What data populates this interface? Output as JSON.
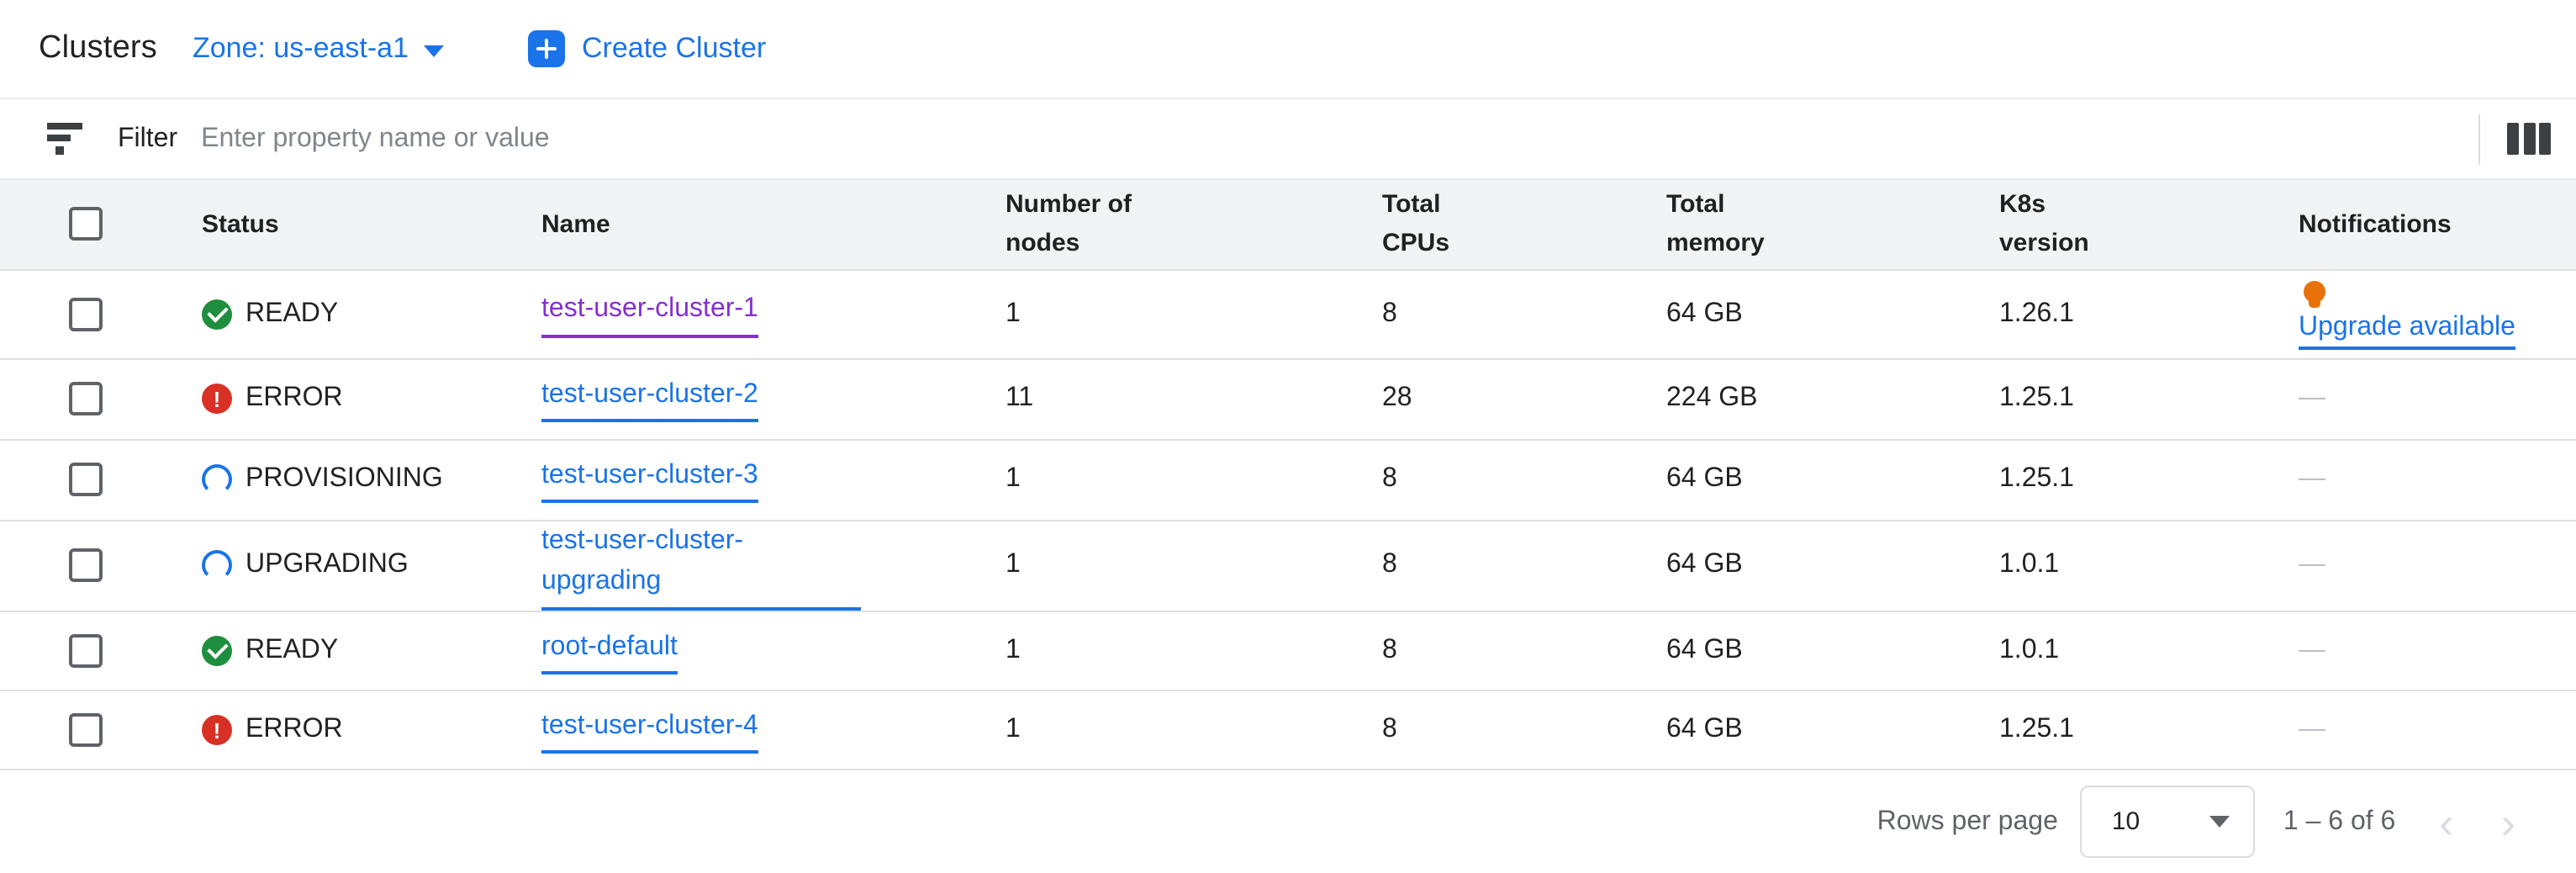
{
  "topbar": {
    "title": "Clusters",
    "zone": {
      "label": "Zone: us-east-a1",
      "icon": "caret-down-icon"
    },
    "create": {
      "label": "Create Cluster",
      "icon": "plus-icon"
    }
  },
  "filterbar": {
    "icon": "filter-icon",
    "label": "Filter",
    "placeholder": "Enter property name or value",
    "columns_icon": "columns-icon"
  },
  "table": {
    "headers": {
      "status": "Status",
      "name": "Name",
      "nodes": "Number of nodes",
      "cpus": "Total CPUs",
      "memory": "Total memory",
      "k8s": "K8s version",
      "notifications": "Notifications"
    },
    "rows": [
      {
        "status": "READY",
        "status_icon": "check-circle",
        "name": "test-user-cluster-1",
        "name_variant": "visited",
        "nodes": "1",
        "cpus": "8",
        "memory": "64 GB",
        "k8s": "1.26.1",
        "notification": {
          "icon": "bulb-icon",
          "label": "Upgrade available"
        }
      },
      {
        "status": "ERROR",
        "status_icon": "error-circle",
        "name": "test-user-cluster-2",
        "nodes": "11",
        "cpus": "28",
        "memory": "224 GB",
        "k8s": "1.25.1",
        "notification": {
          "label": "—"
        }
      },
      {
        "status": "PROVISIONING",
        "status_icon": "spinner",
        "name": "test-user-cluster-3",
        "nodes": "1",
        "cpus": "8",
        "memory": "64 GB",
        "k8s": "1.25.1",
        "notification": {
          "label": "—"
        }
      },
      {
        "status": "UPGRADING",
        "status_icon": "spinner",
        "name": "test-user-cluster-upgrading",
        "nodes": "1",
        "cpus": "8",
        "memory": "64 GB",
        "k8s": "1.0.1",
        "notification": {
          "label": "—"
        }
      },
      {
        "status": "READY",
        "status_icon": "check-circle",
        "name": "root-default",
        "nodes": "1",
        "cpus": "8",
        "memory": "64 GB",
        "k8s": "1.0.1",
        "notification": {
          "label": "—"
        }
      },
      {
        "status": "ERROR",
        "status_icon": "error-circle",
        "name": "test-user-cluster-4",
        "nodes": "1",
        "cpus": "8",
        "memory": "64 GB",
        "k8s": "1.25.1",
        "notification": {
          "label": "—"
        }
      }
    ]
  },
  "pagination": {
    "rows_per_page_label": "Rows per page",
    "rows_per_page_value": "10",
    "range_text": "1 – 6 of 6",
    "prev_icon": "‹",
    "next_icon": "›"
  },
  "colors": {
    "accent_blue": "#1a73e8",
    "visited_purple": "#8430ce",
    "ready_green": "#1e8e3e",
    "error_red": "#d93025",
    "bulb_orange": "#e8710a",
    "header_bg": "#f1f3f4"
  }
}
